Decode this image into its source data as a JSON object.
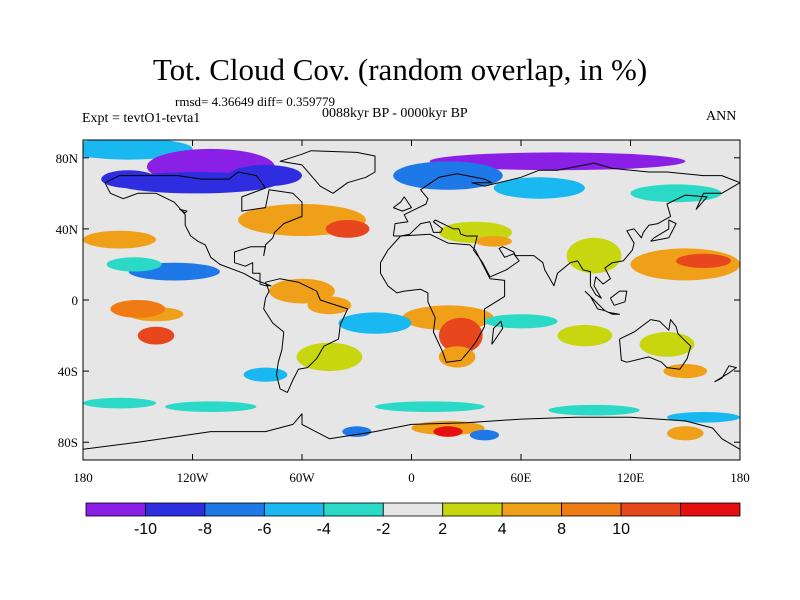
{
  "title": "Tot. Cloud Cov. (random overlap, in %)",
  "stats": "rmsd= 4.36649 diff= 0.359779",
  "period": "0088kyr BP - 0000kyr BP",
  "experiment": "Expt = tevtO1-tevta1",
  "season": "ANN",
  "axes": {
    "lat_labels": [
      "80N",
      "40N",
      "0",
      "40S",
      "80S"
    ],
    "lat_values": [
      80,
      40,
      0,
      -40,
      -80
    ],
    "lon_labels": [
      "180",
      "120W",
      "60W",
      "0",
      "60E",
      "120E",
      "180"
    ],
    "lon_values": [
      -180,
      -120,
      -60,
      0,
      60,
      120,
      180
    ],
    "lat_range": [
      -90,
      90
    ],
    "lon_range": [
      -180,
      180
    ]
  },
  "colorbar": {
    "labels": [
      "-10",
      "-8",
      "-6",
      "-4",
      "-2",
      "2",
      "4",
      "8",
      "10"
    ],
    "colors": [
      "#8a1fe6",
      "#2e2ee0",
      "#1f78e8",
      "#1ab8f0",
      "#2ad9c6",
      "#e6e6e6",
      "#c8d60f",
      "#f0a018",
      "#f07a14",
      "#e8461c",
      "#e60f0f"
    ],
    "background": "#e6e6e6"
  },
  "anomalies": [
    {
      "lon": -155,
      "lat": 85,
      "rx": 35,
      "ry": 6,
      "color": "#1ab8f0"
    },
    {
      "lon": -110,
      "lat": 75,
      "rx": 35,
      "ry": 10,
      "color": "#8a1fe6"
    },
    {
      "lon": -118,
      "lat": 66,
      "rx": 45,
      "ry": 6,
      "color": "#2e2ee0"
    },
    {
      "lon": -80,
      "lat": 70,
      "rx": 20,
      "ry": 6,
      "color": "#2e2ee0"
    },
    {
      "lon": -155,
      "lat": 68,
      "rx": 15,
      "ry": 5,
      "color": "#2e2ee0"
    },
    {
      "lon": 80,
      "lat": 78,
      "rx": 70,
      "ry": 5,
      "color": "#8a1fe6"
    },
    {
      "lon": 20,
      "lat": 70,
      "rx": 30,
      "ry": 8,
      "color": "#1f78e8"
    },
    {
      "lon": 70,
      "lat": 63,
      "rx": 25,
      "ry": 6,
      "color": "#1ab8f0"
    },
    {
      "lon": 145,
      "lat": 60,
      "rx": 25,
      "ry": 5,
      "color": "#2ad9c6"
    },
    {
      "lon": -60,
      "lat": 45,
      "rx": 35,
      "ry": 9,
      "color": "#f0a018"
    },
    {
      "lon": -35,
      "lat": 40,
      "rx": 12,
      "ry": 5,
      "color": "#e8461c"
    },
    {
      "lon": -160,
      "lat": 34,
      "rx": 20,
      "ry": 5,
      "color": "#f0a018"
    },
    {
      "lon": 35,
      "lat": 38,
      "rx": 20,
      "ry": 6,
      "color": "#c8d60f"
    },
    {
      "lon": 45,
      "lat": 33,
      "rx": 10,
      "ry": 3,
      "color": "#f0a018"
    },
    {
      "lon": 100,
      "lat": 25,
      "rx": 15,
      "ry": 10,
      "color": "#c8d60f"
    },
    {
      "lon": -130,
      "lat": 16,
      "rx": 25,
      "ry": 5,
      "color": "#1f78e8"
    },
    {
      "lon": -152,
      "lat": 20,
      "rx": 15,
      "ry": 4,
      "color": "#2ad9c6"
    },
    {
      "lon": 150,
      "lat": 20,
      "rx": 30,
      "ry": 9,
      "color": "#f0a018"
    },
    {
      "lon": 160,
      "lat": 22,
      "rx": 15,
      "ry": 4,
      "color": "#e8461c"
    },
    {
      "lon": -60,
      "lat": 5,
      "rx": 18,
      "ry": 7,
      "color": "#f0a018"
    },
    {
      "lon": -45,
      "lat": -3,
      "rx": 12,
      "ry": 5,
      "color": "#f0a018"
    },
    {
      "lon": 20,
      "lat": -10,
      "rx": 25,
      "ry": 7,
      "color": "#f0a018"
    },
    {
      "lon": 27,
      "lat": -20,
      "rx": 12,
      "ry": 10,
      "color": "#e8461c"
    },
    {
      "lon": 25,
      "lat": -32,
      "rx": 10,
      "ry": 6,
      "color": "#f0a018"
    },
    {
      "lon": -140,
      "lat": -8,
      "rx": 15,
      "ry": 4,
      "color": "#f0a018"
    },
    {
      "lon": -150,
      "lat": -5,
      "rx": 15,
      "ry": 5,
      "color": "#f07a14"
    },
    {
      "lon": -140,
      "lat": -20,
      "rx": 10,
      "ry": 5,
      "color": "#e8461c"
    },
    {
      "lon": -20,
      "lat": -13,
      "rx": 20,
      "ry": 6,
      "color": "#1ab8f0"
    },
    {
      "lon": -45,
      "lat": -32,
      "rx": 18,
      "ry": 8,
      "color": "#c8d60f"
    },
    {
      "lon": 60,
      "lat": -12,
      "rx": 20,
      "ry": 4,
      "color": "#2ad9c6"
    },
    {
      "lon": 95,
      "lat": -20,
      "rx": 15,
      "ry": 6,
      "color": "#c8d60f"
    },
    {
      "lon": 140,
      "lat": -25,
      "rx": 15,
      "ry": 7,
      "color": "#c8d60f"
    },
    {
      "lon": 150,
      "lat": -40,
      "rx": 12,
      "ry": 4,
      "color": "#f0a018"
    },
    {
      "lon": -80,
      "lat": -42,
      "rx": 12,
      "ry": 4,
      "color": "#1ab8f0"
    },
    {
      "lon": -160,
      "lat": -58,
      "rx": 20,
      "ry": 3,
      "color": "#2ad9c6"
    },
    {
      "lon": -110,
      "lat": -60,
      "rx": 25,
      "ry": 3,
      "color": "#2ad9c6"
    },
    {
      "lon": 10,
      "lat": -60,
      "rx": 30,
      "ry": 3,
      "color": "#2ad9c6"
    },
    {
      "lon": 100,
      "lat": -62,
      "rx": 25,
      "ry": 3,
      "color": "#2ad9c6"
    },
    {
      "lon": 160,
      "lat": -66,
      "rx": 20,
      "ry": 3,
      "color": "#1ab8f0"
    },
    {
      "lon": 20,
      "lat": -72,
      "rx": 20,
      "ry": 4,
      "color": "#f0a018"
    },
    {
      "lon": 20,
      "lat": -74,
      "rx": 8,
      "ry": 3,
      "color": "#e60f0f"
    },
    {
      "lon": -30,
      "lat": -74,
      "rx": 8,
      "ry": 3,
      "color": "#1f78e8"
    },
    {
      "lon": 40,
      "lat": -76,
      "rx": 8,
      "ry": 3,
      "color": "#1f78e8"
    },
    {
      "lon": 150,
      "lat": -75,
      "rx": 10,
      "ry": 4,
      "color": "#f0a018"
    }
  ],
  "coastlines": [
    [
      [
        -168,
        66
      ],
      [
        -160,
        70
      ],
      [
        -140,
        70
      ],
      [
        -128,
        70
      ],
      [
        -115,
        68
      ],
      [
        -100,
        68
      ],
      [
        -95,
        72
      ],
      [
        -85,
        70
      ],
      [
        -80,
        63
      ],
      [
        -93,
        58
      ],
      [
        -93,
        50
      ],
      [
        -80,
        52
      ],
      [
        -78,
        62
      ],
      [
        -65,
        60
      ],
      [
        -60,
        55
      ],
      [
        -60,
        47
      ],
      [
        -70,
        43
      ],
      [
        -75,
        38
      ],
      [
        -76,
        35
      ],
      [
        -80,
        31
      ],
      [
        -81,
        25
      ],
      [
        -80,
        30
      ],
      [
        -84,
        30
      ],
      [
        -88,
        30
      ],
      [
        -97,
        27
      ],
      [
        -97,
        21
      ],
      [
        -91,
        19
      ],
      [
        -87,
        21
      ],
      [
        -87,
        15
      ],
      [
        -83,
        15
      ],
      [
        -83,
        9
      ],
      [
        -80,
        8
      ],
      [
        -77,
        8
      ],
      [
        -85,
        11
      ],
      [
        -92,
        15
      ],
      [
        -105,
        20
      ],
      [
        -110,
        24
      ],
      [
        -113,
        31
      ],
      [
        -117,
        33
      ],
      [
        -121,
        36
      ],
      [
        -124,
        42
      ],
      [
        -124,
        48
      ],
      [
        -130,
        55
      ],
      [
        -140,
        60
      ],
      [
        -150,
        60
      ],
      [
        -158,
        57
      ],
      [
        -165,
        60
      ],
      [
        -168,
        66
      ]
    ],
    [
      [
        -55,
        84
      ],
      [
        -30,
        83
      ],
      [
        -20,
        81
      ],
      [
        -20,
        72
      ],
      [
        -25,
        69
      ],
      [
        -35,
        66
      ],
      [
        -43,
        60
      ],
      [
        -50,
        64
      ],
      [
        -55,
        70
      ],
      [
        -60,
        76
      ],
      [
        -72,
        78
      ],
      [
        -60,
        82
      ],
      [
        -55,
        84
      ]
    ],
    [
      [
        -80,
        10
      ],
      [
        -72,
        12
      ],
      [
        -62,
        10
      ],
      [
        -52,
        5
      ],
      [
        -50,
        0
      ],
      [
        -44,
        -2
      ],
      [
        -35,
        -5
      ],
      [
        -39,
        -14
      ],
      [
        -40,
        -22
      ],
      [
        -48,
        -26
      ],
      [
        -52,
        -33
      ],
      [
        -57,
        -38
      ],
      [
        -62,
        -39
      ],
      [
        -65,
        -45
      ],
      [
        -68,
        -52
      ],
      [
        -72,
        -50
      ],
      [
        -74,
        -42
      ],
      [
        -73,
        -35
      ],
      [
        -71,
        -28
      ],
      [
        -70,
        -18
      ],
      [
        -76,
        -13
      ],
      [
        -81,
        -5
      ],
      [
        -80,
        1
      ],
      [
        -78,
        5
      ],
      [
        -80,
        10
      ]
    ],
    [
      [
        -17,
        15
      ],
      [
        -17,
        21
      ],
      [
        -13,
        28
      ],
      [
        -6,
        36
      ],
      [
        10,
        37
      ],
      [
        20,
        32
      ],
      [
        32,
        31
      ],
      [
        35,
        28
      ],
      [
        43,
        12
      ],
      [
        51,
        11
      ],
      [
        51,
        2
      ],
      [
        40,
        -5
      ],
      [
        40,
        -15
      ],
      [
        35,
        -24
      ],
      [
        32,
        -28
      ],
      [
        27,
        -34
      ],
      [
        19,
        -35
      ],
      [
        17,
        -29
      ],
      [
        12,
        -18
      ],
      [
        13,
        -10
      ],
      [
        9,
        -1
      ],
      [
        9,
        4
      ],
      [
        5,
        6
      ],
      [
        -4,
        5
      ],
      [
        -8,
        4
      ],
      [
        -13,
        8
      ],
      [
        -17,
        15
      ]
    ],
    [
      [
        -10,
        36
      ],
      [
        -9,
        43
      ],
      [
        -2,
        44
      ],
      [
        -4,
        48
      ],
      [
        2,
        51
      ],
      [
        8,
        54
      ],
      [
        9,
        57
      ],
      [
        5,
        62
      ],
      [
        15,
        69
      ],
      [
        25,
        71
      ],
      [
        40,
        68
      ],
      [
        44,
        66
      ],
      [
        33,
        66
      ],
      [
        40,
        64
      ],
      [
        60,
        69
      ],
      [
        70,
        73
      ],
      [
        80,
        73
      ],
      [
        100,
        77
      ],
      [
        110,
        74
      ],
      [
        130,
        72
      ],
      [
        140,
        72
      ],
      [
        160,
        70
      ],
      [
        170,
        70
      ],
      [
        180,
        66
      ],
      [
        170,
        60
      ],
      [
        160,
        60
      ],
      [
        156,
        51
      ],
      [
        162,
        58
      ],
      [
        150,
        59
      ],
      [
        140,
        54
      ],
      [
        142,
        47
      ],
      [
        135,
        43
      ],
      [
        130,
        42
      ],
      [
        127,
        38
      ],
      [
        126,
        35
      ],
      [
        122,
        40
      ],
      [
        118,
        39
      ],
      [
        122,
        32
      ],
      [
        121,
        28
      ],
      [
        116,
        22
      ],
      [
        110,
        21
      ],
      [
        106,
        18
      ],
      [
        109,
        12
      ],
      [
        105,
        9
      ],
      [
        101,
        13
      ],
      [
        100,
        8
      ],
      [
        104,
        1
      ],
      [
        101,
        3
      ],
      [
        98,
        8
      ],
      [
        98,
        16
      ],
      [
        94,
        17
      ],
      [
        91,
        22
      ],
      [
        87,
        21
      ],
      [
        80,
        15
      ],
      [
        78,
        8
      ],
      [
        73,
        17
      ],
      [
        72,
        21
      ],
      [
        67,
        25
      ],
      [
        57,
        25
      ],
      [
        56,
        27
      ],
      [
        50,
        30
      ],
      [
        48,
        29
      ],
      [
        51,
        24
      ],
      [
        56,
        26
      ],
      [
        59,
        22
      ],
      [
        52,
        17
      ],
      [
        43,
        13
      ],
      [
        39,
        21
      ],
      [
        34,
        28
      ],
      [
        36,
        36
      ],
      [
        30,
        36
      ],
      [
        27,
        37
      ],
      [
        26,
        40
      ],
      [
        23,
        40
      ],
      [
        19,
        42
      ],
      [
        13,
        45
      ],
      [
        12,
        44
      ],
      [
        17,
        40
      ],
      [
        16,
        38
      ],
      [
        12,
        38
      ],
      [
        10,
        44
      ],
      [
        5,
        43
      ],
      [
        -1,
        37
      ],
      [
        -6,
        36
      ],
      [
        -10,
        36
      ]
    ],
    [
      [
        114,
        -22
      ],
      [
        115,
        -34
      ],
      [
        118,
        -35
      ],
      [
        130,
        -32
      ],
      [
        137,
        -35
      ],
      [
        140,
        -38
      ],
      [
        147,
        -39
      ],
      [
        151,
        -33
      ],
      [
        153,
        -26
      ],
      [
        146,
        -19
      ],
      [
        145,
        -15
      ],
      [
        142,
        -11
      ],
      [
        141,
        -17
      ],
      [
        136,
        -12
      ],
      [
        131,
        -11
      ],
      [
        122,
        -18
      ],
      [
        114,
        -22
      ]
    ],
    [
      [
        -180,
        -84
      ],
      [
        -150,
        -80
      ],
      [
        -110,
        -74
      ],
      [
        -80,
        -74
      ],
      [
        -65,
        -70
      ],
      [
        -60,
        -64
      ],
      [
        -60,
        -70
      ],
      [
        -45,
        -78
      ],
      [
        -20,
        -74
      ],
      [
        0,
        -70
      ],
      [
        30,
        -69
      ],
      [
        60,
        -67
      ],
      [
        90,
        -66
      ],
      [
        120,
        -66
      ],
      [
        150,
        -68
      ],
      [
        165,
        -72
      ],
      [
        170,
        -78
      ],
      [
        180,
        -84
      ]
    ],
    [
      [
        95,
        5
      ],
      [
        100,
        0
      ],
      [
        106,
        -6
      ],
      [
        102,
        -5
      ],
      [
        98,
        2
      ],
      [
        95,
        5
      ]
    ],
    [
      [
        108,
        -7
      ],
      [
        114,
        -8
      ],
      [
        110,
        -8
      ],
      [
        106,
        -6
      ],
      [
        108,
        -7
      ]
    ],
    [
      [
        109,
        1
      ],
      [
        114,
        5
      ],
      [
        118,
        5
      ],
      [
        117,
        -1
      ],
      [
        111,
        -3
      ],
      [
        109,
        1
      ]
    ],
    [
      [
        44,
        -25
      ],
      [
        50,
        -16
      ],
      [
        49,
        -12
      ],
      [
        45,
        -16
      ],
      [
        44,
        -25
      ]
    ],
    [
      [
        -10,
        52
      ],
      [
        -6,
        55
      ],
      [
        -4,
        58
      ],
      [
        0,
        52
      ],
      [
        -5,
        50
      ],
      [
        -10,
        52
      ]
    ],
    [
      [
        131,
        33
      ],
      [
        133,
        35
      ],
      [
        141,
        40
      ],
      [
        141,
        45
      ],
      [
        145,
        43
      ],
      [
        141,
        35
      ],
      [
        131,
        33
      ]
    ],
    [
      [
        -124,
        49
      ],
      [
        -123,
        50
      ],
      [
        -127,
        51
      ],
      [
        -124,
        49
      ]
    ],
    [
      [
        166,
        -46
      ],
      [
        174,
        -41
      ],
      [
        178,
        -38
      ],
      [
        174,
        -37
      ],
      [
        170,
        -44
      ],
      [
        166,
        -46
      ]
    ]
  ]
}
